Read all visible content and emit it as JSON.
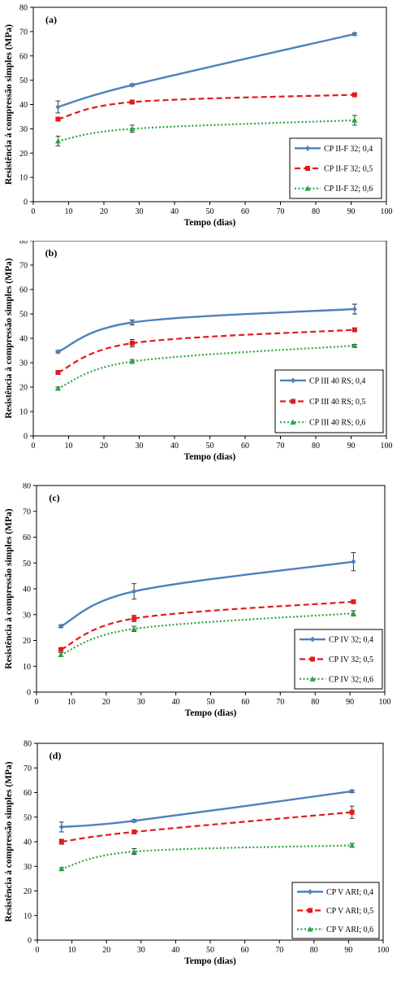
{
  "chart_data": [
    {
      "type": "line",
      "panel_label": "(a)",
      "xlabel": "Tempo (dias)",
      "ylabel": "Resistência à compressão simples (MPa)",
      "xlim": [
        0,
        100
      ],
      "ylim": [
        0,
        80
      ],
      "xticks": [
        "0",
        "10",
        "20",
        "30",
        "40",
        "50",
        "60",
        "70",
        "80",
        "90",
        "100"
      ],
      "yticks": [
        "0",
        "10",
        "20",
        "30",
        "40",
        "50",
        "60",
        "70",
        "80"
      ],
      "grid": false,
      "legend_position": "bottom-right",
      "x": [
        7,
        28,
        91
      ],
      "series": [
        {
          "name": "CP II-F 32; 0,4",
          "values": [
            39,
            48,
            69
          ],
          "error": [
            2.5,
            0.5,
            0.5
          ],
          "color": "#4f81bd",
          "style": "solid",
          "marker": "diamond"
        },
        {
          "name": "CP II-F 32; 0,5",
          "values": [
            34,
            41,
            44
          ],
          "error": [
            0.8,
            0.8,
            0.5
          ],
          "color": "#e31a1c",
          "style": "dashed",
          "marker": "square"
        },
        {
          "name": "CP II-F 32; 0,6",
          "values": [
            25,
            30,
            33.5
          ],
          "error": [
            2,
            1.5,
            2
          ],
          "color": "#27a644",
          "style": "dotted",
          "marker": "triangle"
        }
      ]
    },
    {
      "type": "line",
      "panel_label": "(b)",
      "xlabel": "Tempo (dias)",
      "ylabel": "Resistência à compressão simples (MPa)",
      "xlim": [
        0,
        100
      ],
      "ylim": [
        0,
        80
      ],
      "xticks": [
        "0",
        "10",
        "20",
        "30",
        "40",
        "50",
        "60",
        "70",
        "80",
        "90",
        "100"
      ],
      "yticks": [
        "0",
        "10",
        "20",
        "30",
        "40",
        "50",
        "60",
        "70",
        "80"
      ],
      "grid": false,
      "legend_position": "bottom-right",
      "x": [
        7,
        28,
        91
      ],
      "series": [
        {
          "name": "CP III 40 RS; 0,4",
          "values": [
            34.5,
            46.5,
            52
          ],
          "error": [
            0.5,
            1,
            2
          ],
          "color": "#4f81bd",
          "style": "solid",
          "marker": "diamond"
        },
        {
          "name": "CP III 40 RS; 0,5",
          "values": [
            26,
            38,
            43.5
          ],
          "error": [
            0.8,
            1.5,
            0.5
          ],
          "color": "#e31a1c",
          "style": "dashed",
          "marker": "square"
        },
        {
          "name": "CP III 40 RS; 0,6",
          "values": [
            19.5,
            30.5,
            37
          ],
          "error": [
            0.5,
            0.8,
            0.5
          ],
          "color": "#27a644",
          "style": "dotted",
          "marker": "triangle"
        }
      ]
    },
    {
      "type": "line",
      "panel_label": "(c)",
      "xlabel": "Tempo (dias)",
      "ylabel": "Resistência à compressão simples (MPa)",
      "xlim": [
        0,
        100
      ],
      "ylim": [
        0,
        80
      ],
      "xticks": [
        "0",
        "10",
        "20",
        "30",
        "40",
        "50",
        "60",
        "70",
        "80",
        "90",
        "100"
      ],
      "yticks": [
        "0",
        "10",
        "20",
        "30",
        "40",
        "50",
        "60",
        "70",
        "80"
      ],
      "grid": false,
      "legend_position": "bottom-right",
      "x": [
        7,
        28,
        91
      ],
      "series": [
        {
          "name": "CP IV 32; 0,4",
          "values": [
            25.5,
            39,
            50.5
          ],
          "error": [
            0.5,
            3,
            3.5
          ],
          "color": "#4f81bd",
          "style": "solid",
          "marker": "diamond"
        },
        {
          "name": "CP IV 32; 0,5",
          "values": [
            16.5,
            28.5,
            35
          ],
          "error": [
            0.5,
            1.2,
            0.5
          ],
          "color": "#e31a1c",
          "style": "dashed",
          "marker": "square"
        },
        {
          "name": "CP IV 32; 0,6",
          "values": [
            14.5,
            24.5,
            30.5
          ],
          "error": [
            0.8,
            1,
            1
          ],
          "color": "#27a644",
          "style": "dotted",
          "marker": "triangle"
        }
      ]
    },
    {
      "type": "line",
      "panel_label": "(d)",
      "xlabel": "Tempo (dias)",
      "ylabel": "Resistência à compressão simples (MPa)",
      "xlim": [
        0,
        100
      ],
      "ylim": [
        0,
        80
      ],
      "xticks": [
        "0",
        "10",
        "20",
        "30",
        "40",
        "50",
        "60",
        "70",
        "80",
        "90",
        "100"
      ],
      "yticks": [
        "0",
        "10",
        "20",
        "30",
        "40",
        "50",
        "60",
        "70",
        "80"
      ],
      "grid": false,
      "legend_position": "bottom-right",
      "x": [
        7,
        28,
        91
      ],
      "series": [
        {
          "name": "CP V ARI; 0,4",
          "values": [
            46,
            48.5,
            60.5
          ],
          "error": [
            2,
            0.5,
            0.5
          ],
          "color": "#4f81bd",
          "style": "solid",
          "marker": "diamond"
        },
        {
          "name": "CP V ARI; 0,5",
          "values": [
            40,
            44,
            52
          ],
          "error": [
            1,
            0.5,
            2.5
          ],
          "color": "#e31a1c",
          "style": "dashed",
          "marker": "square"
        },
        {
          "name": "CP V ARI; 0,6",
          "values": [
            29,
            36,
            38.5
          ],
          "error": [
            0.5,
            1.2,
            0.8
          ],
          "color": "#27a644",
          "style": "dotted",
          "marker": "triangle"
        }
      ]
    }
  ]
}
